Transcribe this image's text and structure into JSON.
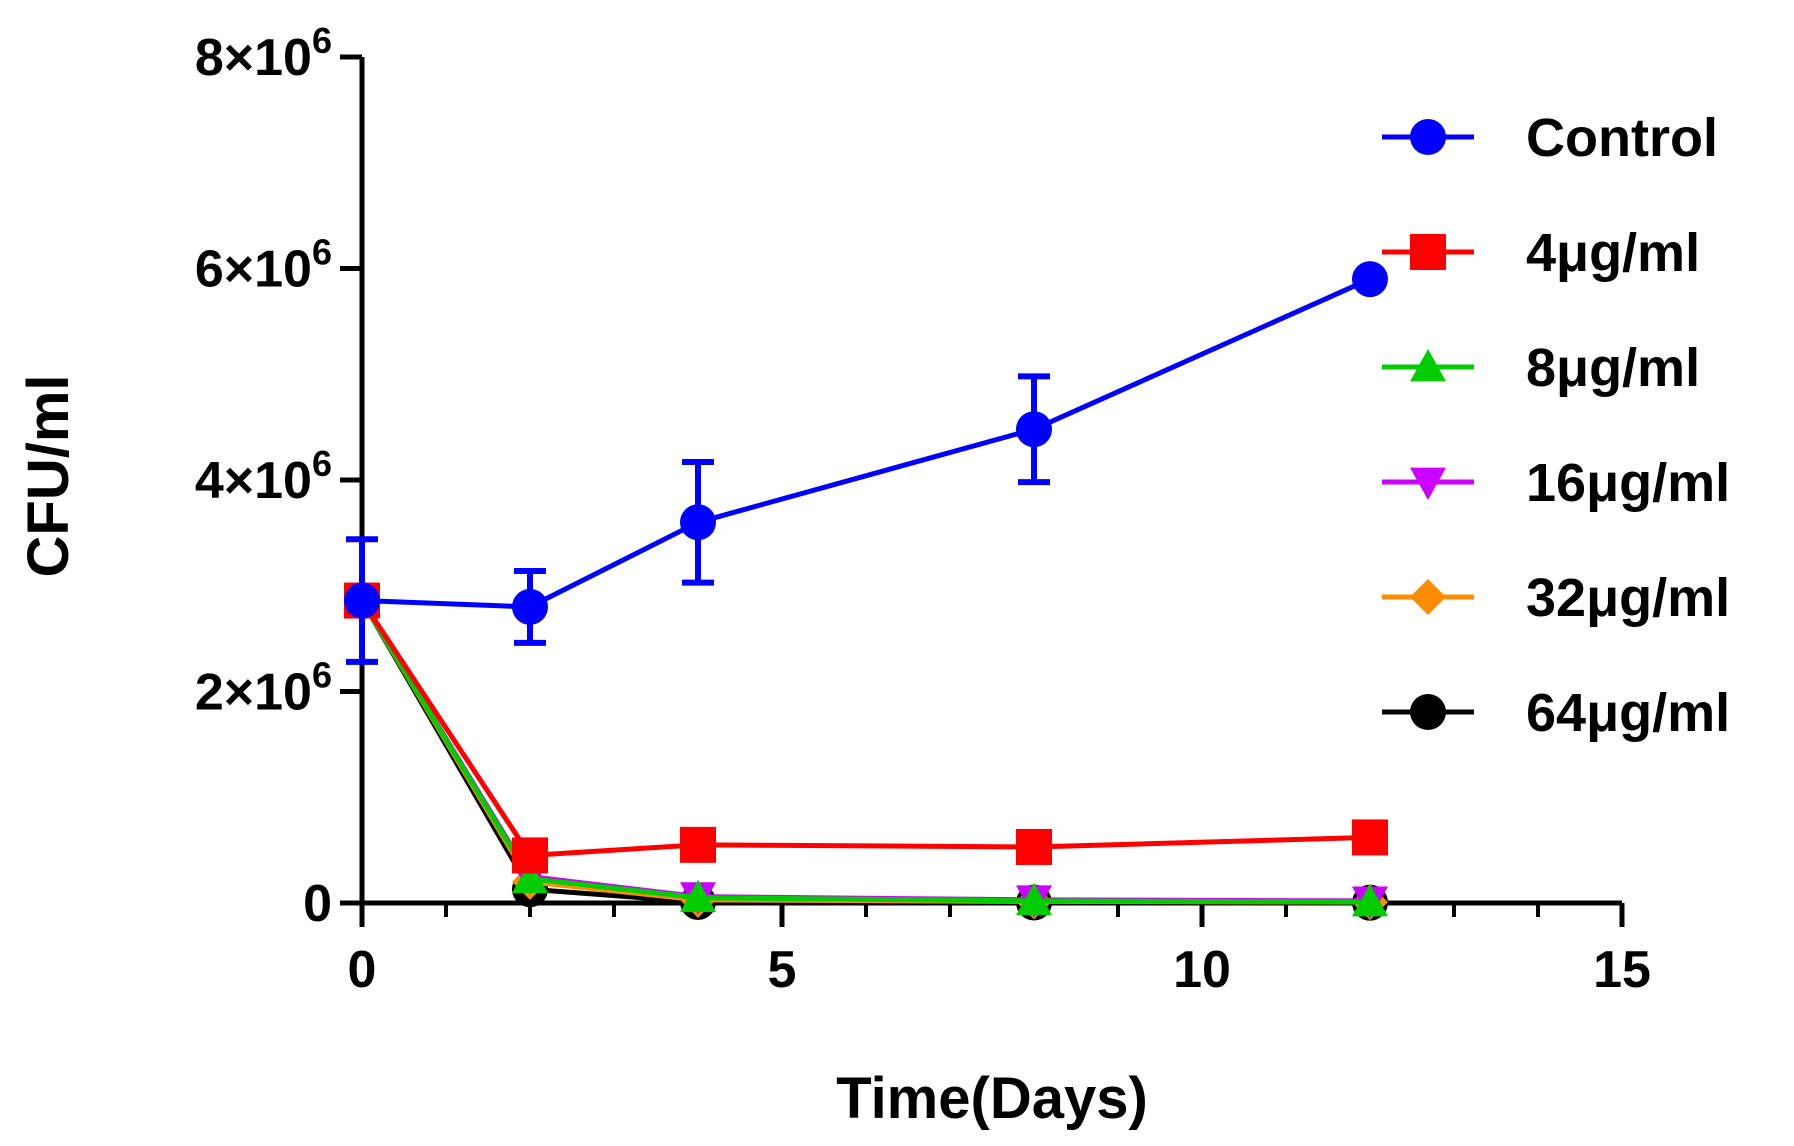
{
  "chart_data": {
    "type": "line",
    "title": "",
    "xlabel": "Time(Days)",
    "ylabel": "CFU/ml",
    "xlim": [
      0,
      15
    ],
    "ylim": [
      0,
      8000000
    ],
    "x_ticks": [
      {
        "value": 0,
        "label": "0"
      },
      {
        "value": 5,
        "label": "5"
      },
      {
        "value": 10,
        "label": "10"
      },
      {
        "value": 15,
        "label": "15"
      }
    ],
    "y_ticks": [
      {
        "value": 0,
        "base": "0",
        "exp": ""
      },
      {
        "value": 2000000,
        "base": "2×10",
        "exp": "6"
      },
      {
        "value": 4000000,
        "base": "4×10",
        "exp": "6"
      },
      {
        "value": 6000000,
        "base": "6×10",
        "exp": "6"
      },
      {
        "value": 8000000,
        "base": "8×10",
        "exp": "6"
      }
    ],
    "x_minor_step": 1,
    "legend_position": "right",
    "series": [
      {
        "name": "Control",
        "color": "#0000ff",
        "marker": "circle",
        "x": [
          0,
          2,
          4,
          8,
          12
        ],
        "y": [
          2860000,
          2800000,
          3600000,
          4480000,
          5900000
        ],
        "err": [
          580000,
          340000,
          570000,
          500000,
          0
        ]
      },
      {
        "name": "4μg/ml",
        "color": "#ff0000",
        "marker": "square",
        "x": [
          0,
          2,
          4,
          8,
          12
        ],
        "y": [
          2860000,
          450000,
          550000,
          530000,
          620000
        ],
        "err": [
          0,
          0,
          0,
          0,
          0
        ]
      },
      {
        "name": "8μg/ml",
        "color": "#00cc00",
        "marker": "triangle-up",
        "x": [
          0,
          2,
          4,
          8,
          12
        ],
        "y": [
          2860000,
          230000,
          50000,
          20000,
          10000
        ],
        "err": [
          0,
          0,
          0,
          0,
          0
        ]
      },
      {
        "name": "16μg/ml",
        "color": "#cc00ff",
        "marker": "triangle-down",
        "x": [
          0,
          2,
          4,
          8,
          12
        ],
        "y": [
          2860000,
          250000,
          60000,
          30000,
          20000
        ],
        "err": [
          0,
          0,
          0,
          0,
          0
        ]
      },
      {
        "name": "32μg/ml",
        "color": "#ff8c00",
        "marker": "diamond",
        "x": [
          0,
          2,
          4,
          8,
          12
        ],
        "y": [
          2860000,
          200000,
          30000,
          15000,
          8000
        ],
        "err": [
          0,
          0,
          0,
          0,
          0
        ]
      },
      {
        "name": "64μg/ml",
        "color": "#000000",
        "marker": "circle",
        "x": [
          0,
          2,
          4,
          8,
          12
        ],
        "y": [
          2860000,
          130000,
          10000,
          5000,
          3000
        ],
        "err": [
          0,
          0,
          0,
          0,
          0
        ]
      }
    ]
  }
}
